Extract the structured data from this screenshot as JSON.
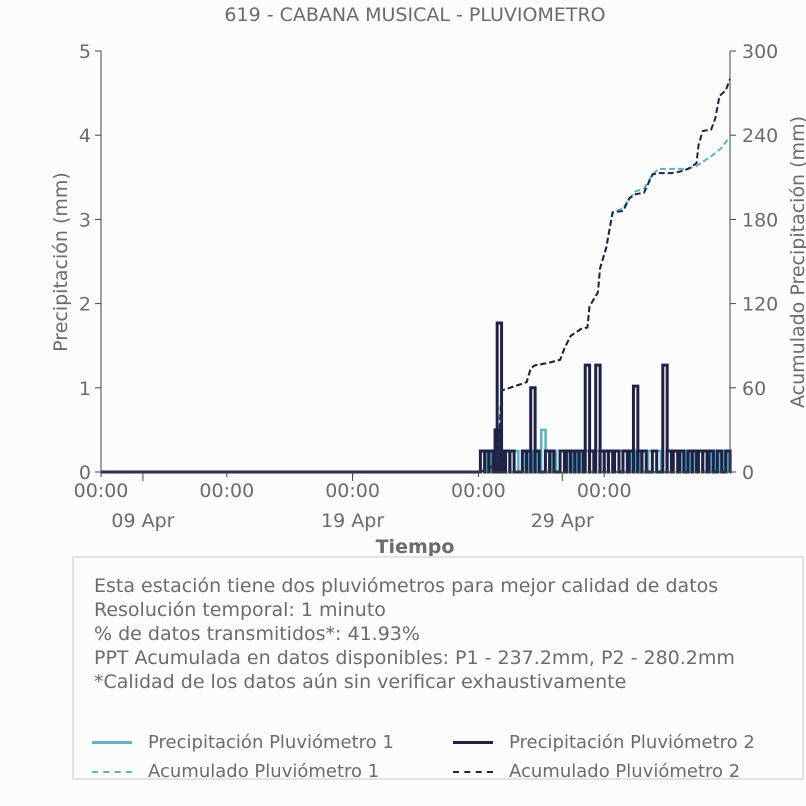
{
  "colors": {
    "p1": "#5ab4c6",
    "p2": "#1f2246",
    "text": "#6b6b6b",
    "axis": "#444444"
  },
  "chart_data": {
    "type": "line",
    "title": "619 - CABANA MUSICAL - PLUVIOMETRO",
    "xlabel": "Tiempo",
    "ylabel_left": "Precipitación (mm)",
    "ylabel_right": "Acumulado Precipitación (mm)",
    "ylim_left": [
      0,
      5
    ],
    "ylim_right": [
      0,
      300
    ],
    "yticks_left": [
      "0",
      "1",
      "2",
      "3",
      "4",
      "5"
    ],
    "yticks_right": [
      "0",
      "60",
      "120",
      "180",
      "240",
      "300"
    ],
    "x_time_labels": [
      "00:00",
      "00:00",
      "00:00",
      "00:00",
      "00:00"
    ],
    "x_date_labels": [
      "09 Apr",
      "19 Apr",
      "29 Apr"
    ],
    "xlim_days": [
      4,
      34
    ],
    "x_time_tick_days": [
      4,
      10,
      16,
      22,
      28
    ],
    "x_date_tick_days": [
      6,
      16,
      26
    ],
    "series": [
      {
        "name": "Precipitación Pluviómetro 1",
        "style": "solid",
        "axis": "left",
        "points": [
          [
            22.2,
            0.25
          ],
          [
            22.5,
            0.25
          ],
          [
            23.0,
            0.25
          ],
          [
            23.4,
            0.25
          ],
          [
            23.8,
            0.25
          ],
          [
            24.3,
            0.25
          ],
          [
            24.7,
            0.25
          ],
          [
            25.1,
            0.5
          ],
          [
            25.6,
            0.25
          ],
          [
            26.0,
            0.25
          ],
          [
            26.4,
            0.25
          ],
          [
            26.8,
            0.25
          ],
          [
            27.2,
            0.25
          ],
          [
            27.7,
            0.25
          ],
          [
            28.3,
            0.25
          ],
          [
            28.8,
            0.25
          ],
          [
            29.2,
            0.25
          ],
          [
            29.6,
            0.25
          ],
          [
            30.2,
            0.25
          ],
          [
            30.6,
            0.25
          ],
          [
            31.4,
            0.25
          ],
          [
            31.8,
            0.25
          ],
          [
            32.2,
            0.25
          ],
          [
            32.6,
            0.25
          ],
          [
            33.0,
            0.25
          ],
          [
            33.4,
            0.25
          ],
          [
            33.8,
            0.25
          ]
        ]
      },
      {
        "name": "Precipitación Pluviómetro 2",
        "style": "solid",
        "axis": "left",
        "points": [
          [
            22.2,
            0.25
          ],
          [
            22.4,
            0.25
          ],
          [
            22.6,
            0.25
          ],
          [
            22.9,
            0.5
          ],
          [
            23.0,
            1.77
          ],
          [
            23.1,
            0.25
          ],
          [
            23.4,
            0.25
          ],
          [
            23.6,
            0.25
          ],
          [
            24.2,
            0.25
          ],
          [
            24.4,
            0.25
          ],
          [
            24.6,
            1.0
          ],
          [
            24.8,
            0.25
          ],
          [
            25.3,
            0.25
          ],
          [
            25.5,
            0.25
          ],
          [
            26.0,
            0.25
          ],
          [
            26.3,
            0.25
          ],
          [
            26.5,
            0.25
          ],
          [
            26.7,
            0.25
          ],
          [
            26.9,
            0.25
          ],
          [
            27.2,
            1.27
          ],
          [
            27.4,
            0.25
          ],
          [
            27.7,
            1.27
          ],
          [
            27.9,
            0.25
          ],
          [
            28.1,
            0.25
          ],
          [
            28.3,
            0.25
          ],
          [
            28.6,
            0.25
          ],
          [
            29.0,
            0.25
          ],
          [
            29.3,
            0.25
          ],
          [
            29.5,
            1.02
          ],
          [
            29.7,
            0.25
          ],
          [
            29.9,
            0.25
          ],
          [
            30.4,
            0.25
          ],
          [
            30.9,
            1.27
          ],
          [
            31.1,
            0.25
          ],
          [
            31.4,
            0.25
          ],
          [
            31.7,
            0.25
          ],
          [
            32.1,
            0.25
          ],
          [
            32.3,
            0.25
          ],
          [
            32.6,
            0.25
          ],
          [
            32.8,
            0.25
          ],
          [
            33.1,
            0.25
          ],
          [
            33.5,
            0.25
          ],
          [
            33.9,
            0.25
          ]
        ]
      },
      {
        "name": "Acumulado Pluviómetro 1",
        "style": "dashed",
        "axis": "right",
        "points": [
          [
            4.0,
            0
          ],
          [
            22.0,
            0
          ],
          [
            22.5,
            2
          ],
          [
            22.9,
            8
          ],
          [
            23.0,
            25
          ],
          [
            23.1,
            58
          ],
          [
            23.5,
            60
          ],
          [
            23.9,
            62
          ],
          [
            24.3,
            64
          ],
          [
            24.5,
            74
          ],
          [
            24.7,
            76
          ],
          [
            25.4,
            78
          ],
          [
            25.9,
            80
          ],
          [
            26.1,
            88
          ],
          [
            26.4,
            97
          ],
          [
            26.9,
            102
          ],
          [
            27.2,
            103
          ],
          [
            27.3,
            118
          ],
          [
            27.7,
            128
          ],
          [
            27.8,
            145
          ],
          [
            28.1,
            160
          ],
          [
            28.4,
            185
          ],
          [
            28.9,
            188
          ],
          [
            29.2,
            195
          ],
          [
            29.5,
            200
          ],
          [
            29.9,
            202
          ],
          [
            30.3,
            212
          ],
          [
            30.6,
            216
          ],
          [
            31.2,
            216
          ],
          [
            31.6,
            216
          ],
          [
            32.0,
            216
          ],
          [
            32.4,
            218
          ],
          [
            32.8,
            222
          ],
          [
            33.2,
            226
          ],
          [
            33.6,
            231
          ],
          [
            33.9,
            237.2
          ]
        ]
      },
      {
        "name": "Acumulado Pluviómetro 2",
        "style": "dashed",
        "axis": "right",
        "points": [
          [
            4.0,
            0
          ],
          [
            22.0,
            0
          ],
          [
            22.5,
            2
          ],
          [
            22.9,
            8
          ],
          [
            23.0,
            25
          ],
          [
            23.1,
            58
          ],
          [
            23.5,
            60
          ],
          [
            23.9,
            62
          ],
          [
            24.3,
            64
          ],
          [
            24.5,
            74
          ],
          [
            24.7,
            76
          ],
          [
            25.4,
            78
          ],
          [
            25.9,
            80
          ],
          [
            26.1,
            88
          ],
          [
            26.4,
            97
          ],
          [
            26.9,
            102
          ],
          [
            27.2,
            103
          ],
          [
            27.3,
            118
          ],
          [
            27.7,
            128
          ],
          [
            27.8,
            145
          ],
          [
            28.1,
            160
          ],
          [
            28.4,
            185
          ],
          [
            28.9,
            186
          ],
          [
            29.2,
            195
          ],
          [
            29.5,
            198
          ],
          [
            29.9,
            199
          ],
          [
            30.3,
            212
          ],
          [
            30.6,
            213
          ],
          [
            31.2,
            213
          ],
          [
            31.6,
            214
          ],
          [
            32.0,
            216
          ],
          [
            32.4,
            220
          ],
          [
            32.5,
            233
          ],
          [
            32.7,
            243
          ],
          [
            33.1,
            244
          ],
          [
            33.3,
            252
          ],
          [
            33.5,
            268
          ],
          [
            33.8,
            272
          ],
          [
            34.0,
            280.2
          ]
        ]
      }
    ]
  },
  "info": {
    "lines": [
      "Esta estación tiene dos pluviómetros para mejor calidad de datos",
      "Resolución temporal: 1 minuto",
      "% de datos transmitidos*: 41.93%",
      "PPT Acumulada en datos disponibles: P1 - 237.2mm, P2 - 280.2mm",
      "*Calidad de los datos aún sin verificar exhaustivamente"
    ]
  },
  "legend": {
    "p1_precip": "Precipitación Pluviómetro 1",
    "p2_precip": "Precipitación Pluviómetro 2",
    "p1_acum": "Acumulado Pluviómetro 1",
    "p2_acum": "Acumulado Pluviómetro 2"
  }
}
